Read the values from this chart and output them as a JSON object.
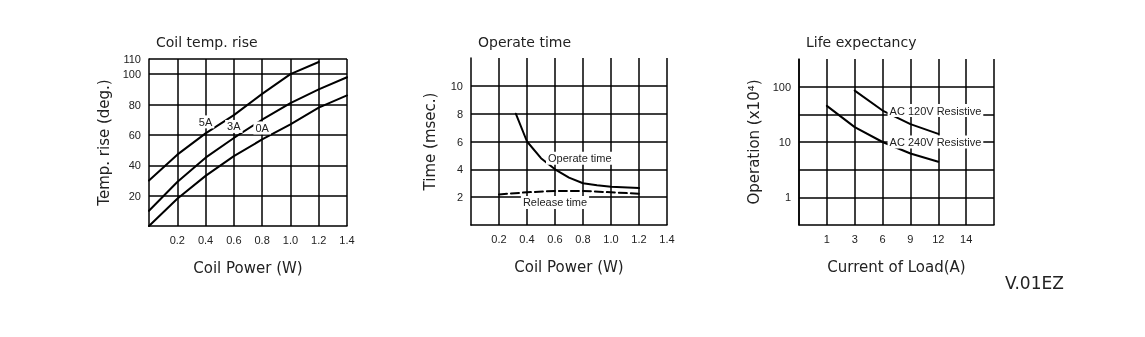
{
  "chart_data": [
    {
      "type": "line",
      "title": "Coil temp. rise",
      "xlabel": "Coil Power (W)",
      "ylabel": "Temp. rise (deg.)",
      "x": [
        0,
        0.2,
        0.4,
        0.6,
        0.8,
        1.0,
        1.2,
        1.4
      ],
      "series": [
        {
          "name": "5A",
          "color": "#000000",
          "values": [
            30,
            47,
            61,
            73,
            87,
            100,
            108,
            null
          ]
        },
        {
          "name": "3A",
          "color": "#000000",
          "values": [
            10,
            29,
            45,
            58,
            70,
            81,
            90,
            98
          ]
        },
        {
          "name": "0A",
          "color": "#000000",
          "values": [
            0,
            18,
            33,
            46,
            57,
            67,
            78,
            86
          ]
        }
      ],
      "xlim": [
        0,
        1.4
      ],
      "xticks": [
        0.2,
        0.4,
        0.6,
        0.8,
        {
          "value": 1,
          "label": "1.0"
        },
        1.2,
        1.4
      ],
      "ylim": [
        0,
        110
      ],
      "yticks": [
        20,
        40,
        60,
        80,
        100,
        110
      ],
      "grid": true,
      "legend": false,
      "marker": "none"
    },
    {
      "type": "line",
      "title": "Operate time",
      "xlabel": "Coil Power (W)",
      "ylabel": "Time (msec.)",
      "series": [
        {
          "name": "Operate time",
          "color": "#000000",
          "x": [
            0.32,
            0.4,
            0.5,
            0.6,
            0.7,
            0.8,
            0.9,
            1.0,
            1.2
          ],
          "values": [
            8,
            6,
            4.8,
            4,
            3.4,
            3.0,
            2.85,
            2.75,
            2.65
          ]
        },
        {
          "name": "Release time",
          "color": "#000000",
          "line_style": "dashed",
          "x": [
            0.2,
            0.4,
            0.6,
            0.8,
            1.0,
            1.2
          ],
          "values": [
            2.2,
            2.35,
            2.45,
            2.45,
            2.35,
            2.25
          ]
        }
      ],
      "xlim": [
        0,
        1.4
      ],
      "xticks": [
        0.2,
        0.4,
        0.6,
        0.8,
        {
          "value": 1,
          "label": "1.0"
        },
        1.2,
        1.4
      ],
      "ylim": [
        0,
        12
      ],
      "yticks": [
        2,
        4,
        6,
        8,
        10
      ],
      "grid": true,
      "legend": false,
      "marker": "none"
    },
    {
      "type": "line",
      "title": "Life expectancy",
      "xlabel": "Current of Load(A)",
      "ylabel": "Operation (x10⁴)",
      "categories": [
        null,
        "1",
        "3",
        "6",
        "9",
        "12",
        "14",
        null
      ],
      "series": [
        {
          "name": "AC 120V Resistive",
          "color": "#000000",
          "values": [
            null,
            null,
            85,
            37,
            21,
            14,
            null,
            null
          ]
        },
        {
          "name": "AC 240V Resistive",
          "color": "#000000",
          "values": [
            null,
            45,
            18.6,
            10,
            6.2,
            4.4,
            null,
            null
          ]
        }
      ],
      "log": "y",
      "ylim": [
        0.3162,
        316.2
      ],
      "yticks": [
        1,
        {
          "value": 3.162,
          "label": null
        },
        10,
        {
          "value": 31.62,
          "label": null
        },
        100
      ],
      "grid": true,
      "legend": false,
      "marker": "none",
      "annotations": [
        "V.01EZ"
      ]
    }
  ]
}
